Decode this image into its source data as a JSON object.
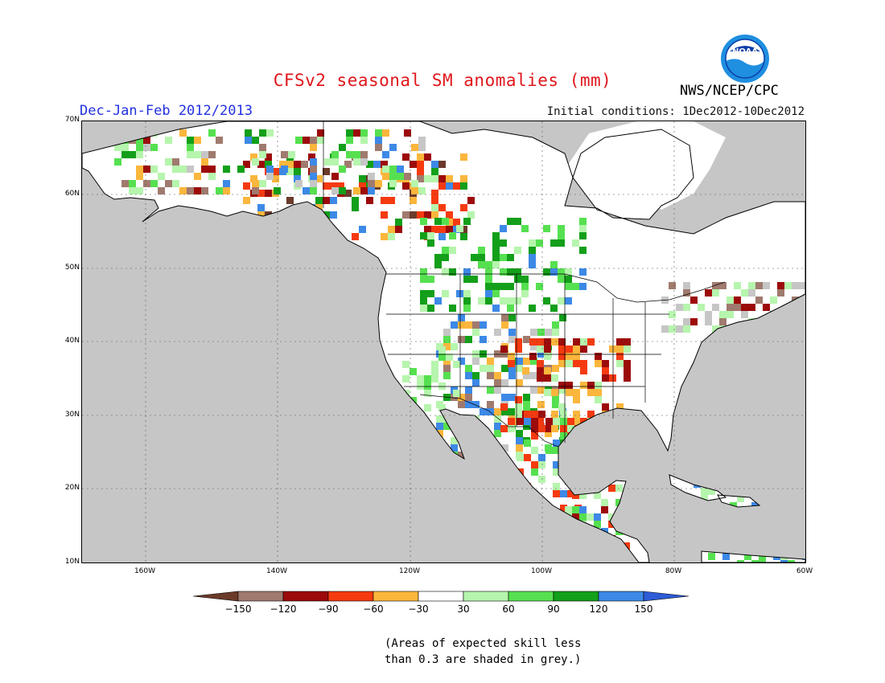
{
  "title": "CFSv2 seasonal SM anomalies (mm)",
  "season": "Dec-Jan-Feb 2012/2013",
  "initial_conditions": "Initial conditions: 1Dec2012-10Dec2012",
  "agency": "NWS/NCEP/CPC",
  "logo_text": "NOAA",
  "latitude_labels": [
    "70N",
    "60N",
    "50N",
    "40N",
    "30N",
    "20N",
    "10N"
  ],
  "longitude_labels": [
    "160W",
    "140W",
    "120W",
    "100W",
    "80W",
    "60W"
  ],
  "colorbar": {
    "labels": [
      "-150",
      "-120",
      "-90",
      "-60",
      "-30",
      "30",
      "60",
      "90",
      "120",
      "150"
    ],
    "colors": [
      "#6b3a2a",
      "#a07a6e",
      "#9c0a0a",
      "#f53a10",
      "#fbb63c",
      "#ffffff",
      "#b6f5ad",
      "#56e050",
      "#139f1a",
      "#3d89e6",
      "#2d5cd6"
    ]
  },
  "note_line1": "(Areas of expected skill less",
  "note_line2": "than 0.3 are shaded in grey.)",
  "colors": {
    "ocean_low_skill": "#c6c6c6",
    "land_no_anomaly": "#ffffff",
    "title": "#e0161b",
    "season": "#2231e0"
  }
}
